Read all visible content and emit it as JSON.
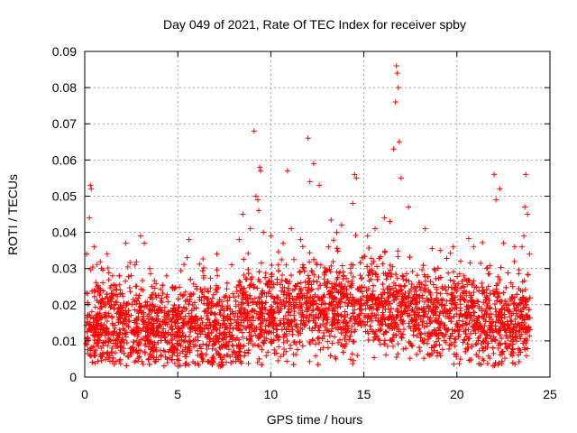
{
  "chart_data": {
    "type": "scatter",
    "title": "Day 049 of 2021, Rate Of TEC Index for receiver spby",
    "xlabel": "GPS time / hours",
    "ylabel": "ROTI / TECUs",
    "xlim": [
      0,
      25
    ],
    "ylim": [
      0,
      0.09
    ],
    "xticks": [
      "0",
      "5",
      "10",
      "15",
      "20",
      "25"
    ],
    "yticks": [
      "0",
      "0.01",
      "0.02",
      "0.03",
      "0.04",
      "0.05",
      "0.06",
      "0.07",
      "0.08",
      "0.09"
    ],
    "grid": true,
    "marker": "+",
    "color": "#ff0000",
    "series": [
      {
        "points_note": "dense cloud of ROTI samples, 0-24 h; notable outliers listed",
        "x": [
          0.1,
          0.25,
          0.3,
          0.35,
          0.5,
          0.9,
          1.2,
          1.5,
          2.2,
          2.7,
          3.0,
          3.2,
          3.6,
          4.4,
          5.5,
          5.6,
          6.4,
          7.1,
          7.9,
          8.3,
          8.5,
          8.9,
          9.1,
          9.2,
          9.3,
          9.35,
          9.4,
          9.45,
          9.6,
          10.0,
          10.4,
          10.9,
          11.1,
          11.6,
          12.0,
          12.1,
          12.3,
          12.6,
          13.1,
          13.8,
          14.4,
          14.5,
          14.6,
          15.2,
          15.6,
          16.1,
          16.4,
          16.6,
          16.7,
          16.75,
          16.8,
          16.85,
          16.9,
          17.0,
          17.4,
          18.3,
          19.1,
          19.8,
          20.2,
          20.9,
          21.6,
          22.0,
          22.1,
          22.3,
          22.5,
          23.1,
          23.5,
          23.6,
          23.65,
          23.7,
          23.8,
          23.9
        ],
        "y": [
          0.034,
          0.044,
          0.053,
          0.052,
          0.036,
          0.03,
          0.034,
          0.028,
          0.037,
          0.031,
          0.039,
          0.037,
          0.025,
          0.028,
          0.033,
          0.038,
          0.028,
          0.034,
          0.031,
          0.038,
          0.045,
          0.041,
          0.068,
          0.05,
          0.049,
          0.046,
          0.058,
          0.057,
          0.04,
          0.039,
          0.031,
          0.057,
          0.041,
          0.038,
          0.066,
          0.054,
          0.059,
          0.053,
          0.036,
          0.042,
          0.048,
          0.056,
          0.055,
          0.039,
          0.041,
          0.044,
          0.043,
          0.063,
          0.076,
          0.086,
          0.084,
          0.08,
          0.065,
          0.055,
          0.047,
          0.041,
          0.035,
          0.036,
          0.032,
          0.036,
          0.03,
          0.056,
          0.049,
          0.052,
          0.037,
          0.036,
          0.036,
          0.039,
          0.047,
          0.056,
          0.045,
          0.034
        ]
      }
    ]
  }
}
